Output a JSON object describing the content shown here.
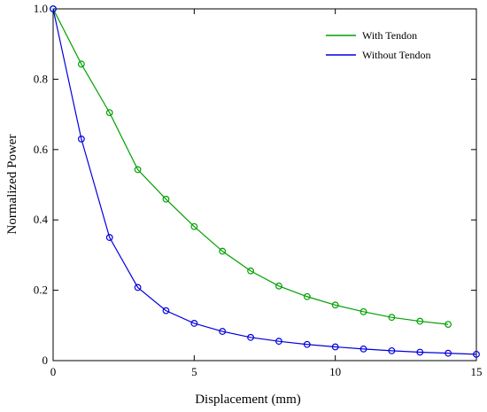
{
  "chart_data": {
    "type": "line",
    "title": "",
    "xlabel": "Displacement (mm)",
    "ylabel": "Normalized Power",
    "xlim": [
      0,
      15
    ],
    "ylim": [
      0,
      1.0
    ],
    "x_ticks": [
      "0",
      "5",
      "10",
      "15"
    ],
    "y_ticks": [
      "0",
      "0.2",
      "0.4",
      "0.6",
      "0.8",
      "1.0"
    ],
    "grid": false,
    "legend_position": "top-right",
    "series": [
      {
        "name": "With Tendon",
        "color": "#00a000",
        "marker": "circle-open",
        "x": [
          0,
          1,
          2,
          3,
          4,
          5,
          6,
          7,
          8,
          9,
          10,
          11,
          12,
          13,
          14
        ],
        "y": [
          1.0,
          0.843,
          0.705,
          0.543,
          0.459,
          0.381,
          0.311,
          0.255,
          0.212,
          0.182,
          0.158,
          0.139,
          0.123,
          0.112,
          0.103
        ]
      },
      {
        "name": "Without Tendon",
        "color": "#0000e0",
        "marker": "circle-open",
        "x": [
          0,
          1,
          2,
          3,
          4,
          5,
          6,
          7,
          8,
          9,
          10,
          11,
          12,
          13,
          14,
          15
        ],
        "y": [
          1.0,
          0.63,
          0.35,
          0.208,
          0.142,
          0.106,
          0.083,
          0.066,
          0.055,
          0.046,
          0.039,
          0.033,
          0.028,
          0.024,
          0.021,
          0.018
        ]
      }
    ]
  }
}
